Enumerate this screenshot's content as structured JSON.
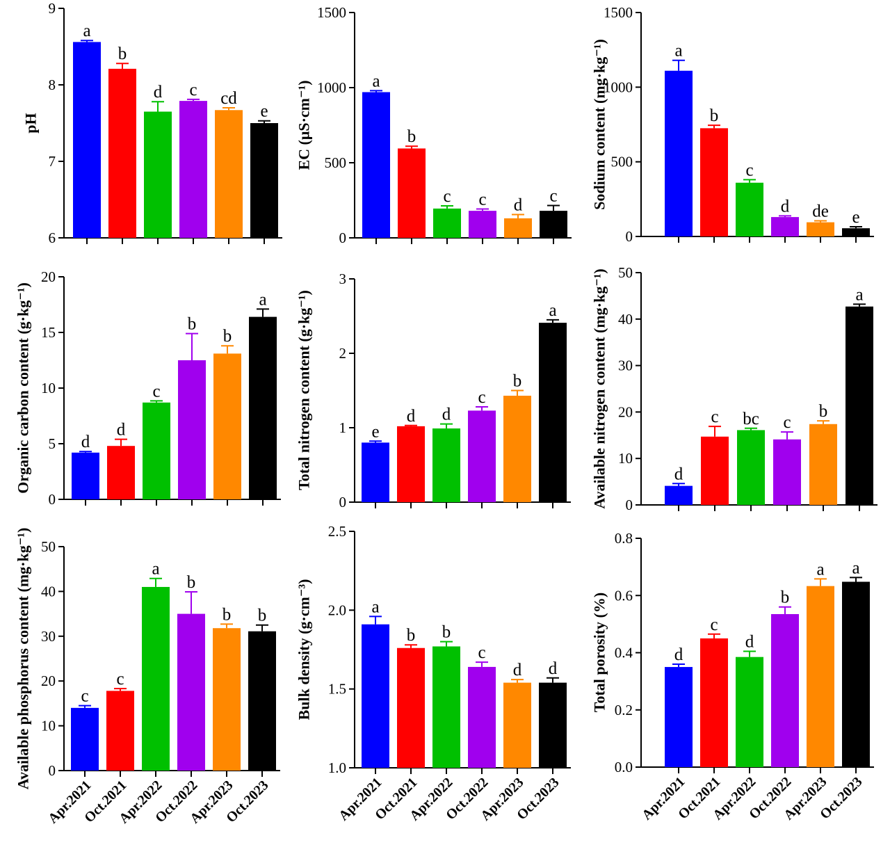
{
  "colors": [
    "#0000ff",
    "#ff0000",
    "#00c000",
    "#a000ee",
    "#ff8800",
    "#000000"
  ],
  "categories": [
    "Apr.2021",
    "Oct.2021",
    "Apr.2022",
    "Oct.2022",
    "Apr.2023",
    "Oct.2023"
  ],
  "chart_data": [
    {
      "type": "bar",
      "ylabel": "pH",
      "ylim": [
        6,
        9
      ],
      "yticks": [
        6,
        7,
        8,
        9
      ],
      "categories": [
        "Apr.2021",
        "Oct.2021",
        "Apr.2022",
        "Oct.2022",
        "Apr.2023",
        "Oct.2023"
      ],
      "values": [
        8.56,
        8.21,
        7.65,
        7.79,
        7.67,
        7.5
      ],
      "errors": [
        0.02,
        0.07,
        0.13,
        0.02,
        0.03,
        0.03
      ],
      "significance": [
        "a",
        "b",
        "d",
        "c",
        "cd",
        "e"
      ]
    },
    {
      "type": "bar",
      "ylabel": "EC (μS·cm⁻¹)",
      "ylim": [
        0,
        1500
      ],
      "yticks": [
        0,
        500,
        1000,
        1500
      ],
      "categories": [
        "Apr.2021",
        "Oct.2021",
        "Apr.2022",
        "Oct.2022",
        "Apr.2023",
        "Oct.2023"
      ],
      "values": [
        970,
        595,
        195,
        180,
        130,
        180
      ],
      "errors": [
        10,
        15,
        18,
        12,
        25,
        35
      ],
      "significance": [
        "a",
        "b",
        "c",
        "c",
        "d",
        "c"
      ]
    },
    {
      "type": "bar",
      "ylabel": "Sodium content (mg·kg⁻¹)",
      "ylim": [
        0,
        1500
      ],
      "yticks": [
        0,
        500,
        1000,
        1500
      ],
      "categories": [
        "Apr.2021",
        "Oct.2021",
        "Apr.2022",
        "Oct.2022",
        "Apr.2023",
        "Oct.2023"
      ],
      "values": [
        1110,
        725,
        360,
        130,
        95,
        55
      ],
      "errors": [
        70,
        20,
        20,
        8,
        10,
        10
      ],
      "significance": [
        "a",
        "b",
        "c",
        "d",
        "de",
        "e"
      ]
    },
    {
      "type": "bar",
      "ylabel": "Organic carbon content (g·kg⁻¹)",
      "ylim": [
        0,
        20
      ],
      "yticks": [
        0,
        5,
        10,
        15,
        20
      ],
      "categories": [
        "Apr.2021",
        "Oct.2021",
        "Apr.2022",
        "Oct.2022",
        "Apr.2023",
        "Oct.2023"
      ],
      "values": [
        4.2,
        4.8,
        8.7,
        12.5,
        13.1,
        16.4
      ],
      "errors": [
        0.1,
        0.6,
        0.15,
        2.4,
        0.7,
        0.7
      ],
      "significance": [
        "d",
        "d",
        "c",
        "b",
        "b",
        "a"
      ]
    },
    {
      "type": "bar",
      "ylabel": "Total nitrogen  content (g·kg⁻¹)",
      "ylim": [
        0,
        3
      ],
      "yticks": [
        0,
        1,
        2,
        3
      ],
      "categories": [
        "Apr.2021",
        "Oct.2021",
        "Apr.2022",
        "Oct.2022",
        "Apr.2023",
        "Oct.2023"
      ],
      "values": [
        0.8,
        1.02,
        0.99,
        1.23,
        1.43,
        2.41
      ],
      "errors": [
        0.02,
        0.01,
        0.06,
        0.05,
        0.07,
        0.04
      ],
      "significance": [
        "e",
        "d",
        "d",
        "c",
        "b",
        "a"
      ]
    },
    {
      "type": "bar",
      "ylabel": "Available nitrogen content (mg·kg⁻¹)",
      "ylim": [
        0,
        50
      ],
      "yticks": [
        0,
        10,
        20,
        30,
        40,
        50
      ],
      "categories": [
        "Apr.2021",
        "Oct.2021",
        "Apr.2022",
        "Oct.2022",
        "Apr.2023",
        "Oct.2023"
      ],
      "values": [
        4.1,
        14.7,
        16.1,
        14.1,
        17.4,
        42.7
      ],
      "errors": [
        0.5,
        2.2,
        0.4,
        1.6,
        0.7,
        0.5
      ],
      "significance": [
        "d",
        "c",
        "bc",
        "c",
        "b",
        "a"
      ]
    },
    {
      "type": "bar",
      "ylabel": "Available phosphorus content (mg·kg⁻¹)",
      "ylim": [
        0,
        50
      ],
      "yticks": [
        0,
        10,
        20,
        30,
        40,
        50
      ],
      "categories": [
        "Apr.2021",
        "Oct.2021",
        "Apr.2022",
        "Oct.2022",
        "Apr.2023",
        "Oct.2023"
      ],
      "values": [
        14.0,
        17.8,
        41.0,
        35.0,
        31.8,
        31.1
      ],
      "errors": [
        0.5,
        0.5,
        1.9,
        4.9,
        0.9,
        1.4
      ],
      "significance": [
        "c",
        "c",
        "a",
        "b",
        "b",
        "b"
      ]
    },
    {
      "type": "bar",
      "ylabel": "Bulk density (g·cm⁻³)",
      "ylim": [
        1.0,
        2.5
      ],
      "yticks": [
        1.0,
        1.5,
        2.0,
        2.5
      ],
      "categories": [
        "Apr.2021",
        "Oct.2021",
        "Apr.2022",
        "Oct.2022",
        "Apr.2023",
        "Oct.2023"
      ],
      "values": [
        1.91,
        1.76,
        1.77,
        1.64,
        1.54,
        1.54
      ],
      "errors": [
        0.05,
        0.02,
        0.03,
        0.03,
        0.02,
        0.03
      ],
      "significance": [
        "a",
        "b",
        "b",
        "c",
        "d",
        "d"
      ]
    },
    {
      "type": "bar",
      "ylabel": "Total porosity (%)",
      "ylim": [
        0.0,
        0.8
      ],
      "yticks": [
        0.0,
        0.2,
        0.4,
        0.6,
        0.8
      ],
      "categories": [
        "Apr.2021",
        "Oct.2021",
        "Apr.2022",
        "Oct.2022",
        "Apr.2023",
        "Oct.2023"
      ],
      "values": [
        0.35,
        0.45,
        0.385,
        0.535,
        0.633,
        0.648
      ],
      "errors": [
        0.01,
        0.015,
        0.02,
        0.025,
        0.025,
        0.015
      ],
      "significance": [
        "d",
        "c",
        "d",
        "b",
        "a",
        "a"
      ]
    }
  ]
}
